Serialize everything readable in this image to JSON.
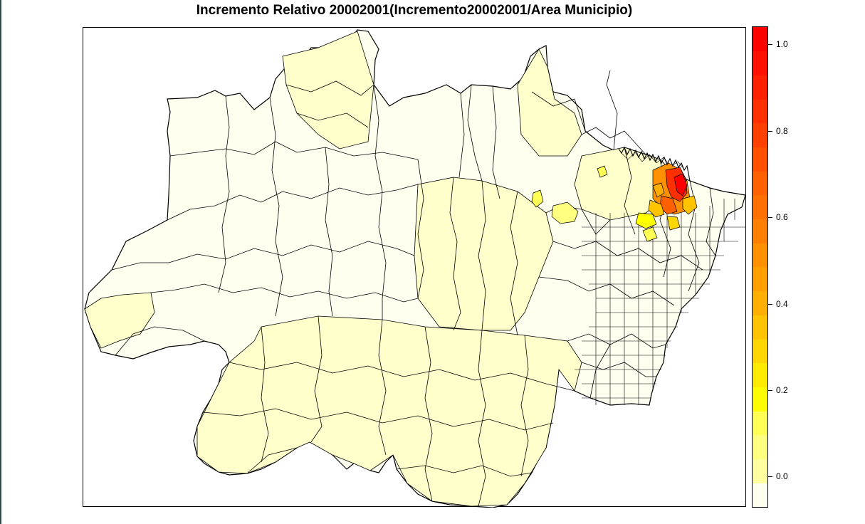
{
  "title": "Incremento Relativo 20002001(Incremento20002001/Area Municipio)",
  "legend": {
    "ticks": [
      "0.0",
      "0.2",
      "0.4",
      "0.6",
      "0.8",
      "1.0"
    ],
    "tick_values": [
      0.0,
      0.2,
      0.4,
      0.6,
      0.8,
      1.0
    ],
    "range": [
      -0.07,
      1.04
    ],
    "colors": [
      "#fffff0",
      "#ffff9f",
      "#ffff80",
      "#ffff55",
      "#ffff00",
      "#ffeb00",
      "#ffd700",
      "#ffc300",
      "#ffaf00",
      "#ff9f00",
      "#ff9000",
      "#ff8000",
      "#ff7000",
      "#ff6000",
      "#ff5000",
      "#ff4000",
      "#ff3000",
      "#ff2000",
      "#ff1000",
      "#ff0000"
    ],
    "colors_low_to_high": true
  },
  "map": {
    "region": "Amazonia Legal municipalities",
    "base_color": "#fffff0",
    "low_color": "#ffffc8",
    "hotspot_colors": [
      "#ff0000",
      "#ff3000",
      "#ff6000",
      "#ff9000",
      "#ffc300",
      "#ffff00"
    ]
  }
}
